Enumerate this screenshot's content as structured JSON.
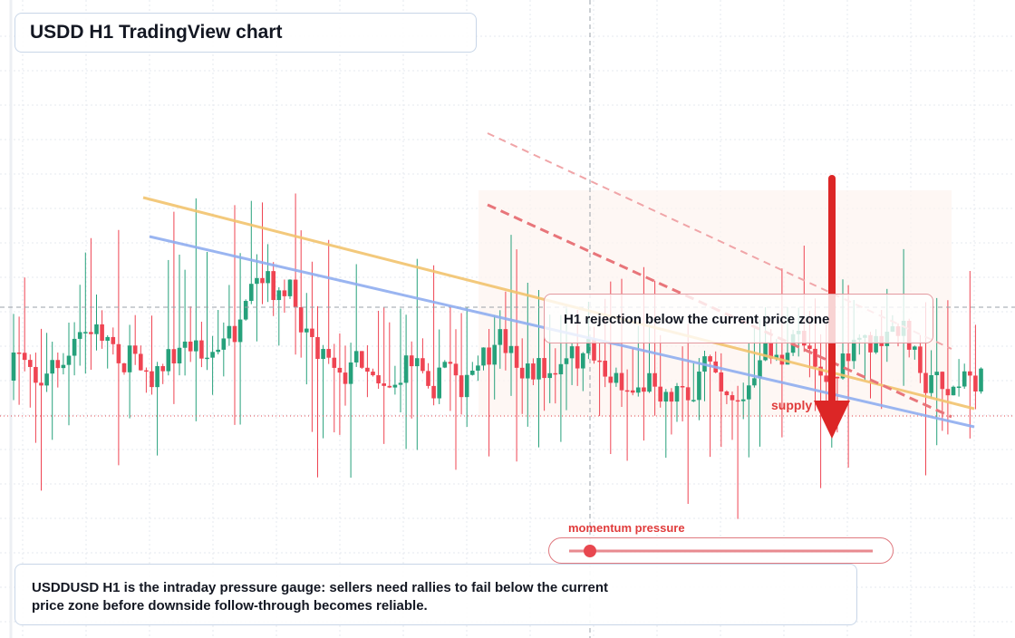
{
  "header": {
    "title": "USDD H1 TradingView chart"
  },
  "annotation": {
    "text": "H1 rejection below the current price zone"
  },
  "zone_label": {
    "text": "supply"
  },
  "gauge": {
    "label": "momentum pressure"
  },
  "footer": {
    "text": "USDDUSD H1 is the intraday pressure gauge: sellers need rallies to fail below the current price zone before downside follow-through becomes reliable."
  }
}
